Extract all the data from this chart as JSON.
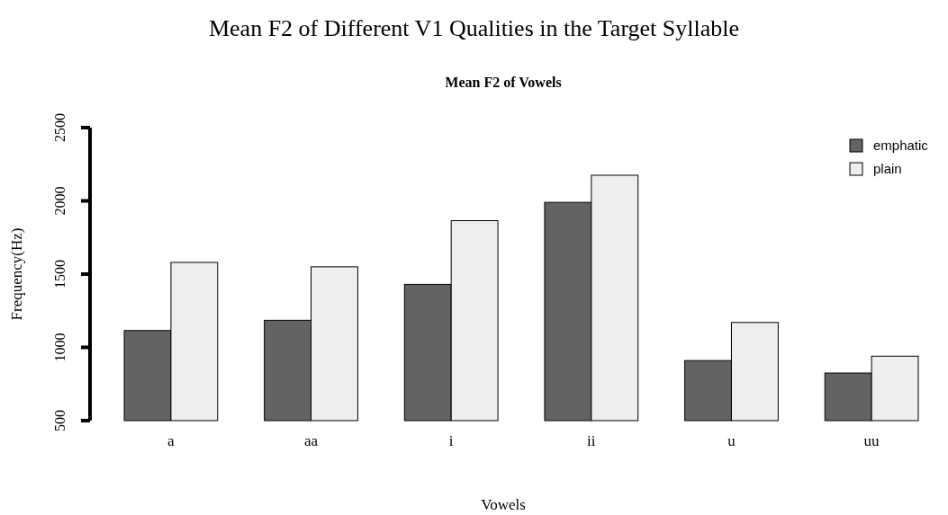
{
  "chart_data": {
    "type": "bar",
    "title": "Mean F2 of Different V1 Qualities in the Target Syllable",
    "subtitle": "Mean F2 of Vowels",
    "xlabel": "Vowels",
    "ylabel": "Frequency(Hz)",
    "categories": [
      "a",
      "aa",
      "i",
      "ii",
      "u",
      "uu"
    ],
    "series": [
      {
        "name": "emphatic",
        "color": "#636363",
        "values": [
          1115,
          1185,
          1430,
          1990,
          910,
          825
        ]
      },
      {
        "name": "plain",
        "color": "#eeeeee",
        "values": [
          1580,
          1550,
          1865,
          2175,
          1170,
          940
        ]
      }
    ],
    "ylim": [
      500,
      2500
    ],
    "yticks": [
      500,
      1000,
      1500,
      2000,
      2500
    ],
    "legend": "top right"
  }
}
